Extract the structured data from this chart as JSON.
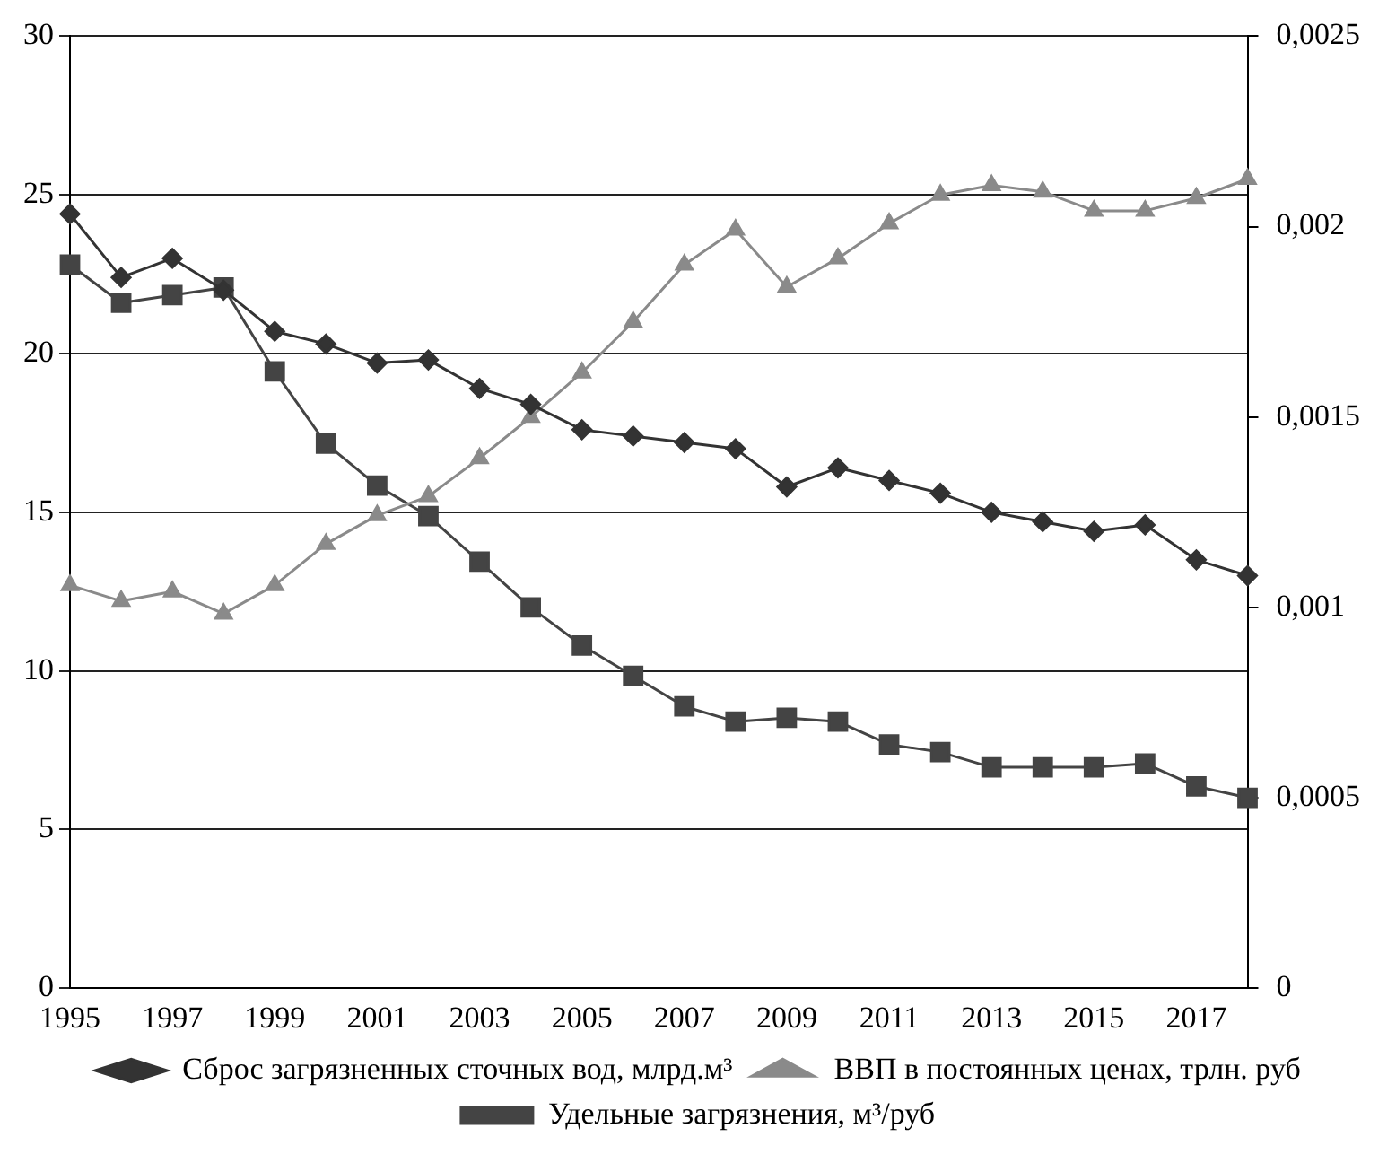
{
  "chart_data": {
    "type": "line",
    "categories": [
      "1995",
      null,
      "1997",
      null,
      "1999",
      null,
      "2001",
      null,
      "2003",
      null,
      "2005",
      null,
      "2007",
      null,
      "2009",
      null,
      "2011",
      null,
      "2013",
      null,
      "2015",
      null,
      "2017",
      null
    ],
    "series": [
      {
        "name": "Сброс загрязненных сточных вод, млрд.м³",
        "color": "#333333",
        "marker": "diamond",
        "values": [
          24.4,
          22.4,
          23.0,
          22.0,
          20.7,
          20.3,
          19.7,
          19.8,
          18.9,
          18.4,
          17.6,
          17.4,
          17.2,
          17.0,
          15.8,
          16.4,
          16.0,
          15.6,
          15.0,
          14.7,
          14.4,
          14.6,
          13.5,
          13.0
        ]
      },
      {
        "name": "ВВП в постоянных ценах, трлн. руб",
        "color": "#8a8a8a",
        "marker": "triangle",
        "values": [
          12.7,
          12.2,
          12.5,
          11.8,
          12.7,
          14.0,
          14.9,
          15.5,
          16.7,
          18.0,
          19.4,
          21.0,
          22.8,
          23.9,
          22.1,
          23.0,
          24.1,
          25.0,
          25.3,
          25.1,
          24.5,
          24.5,
          24.9,
          25.5
        ]
      },
      {
        "name": "Удельные загрязнения, м³/руб",
        "color": "#444444",
        "marker": "square",
        "axis": "y2",
        "values": [
          0.0019,
          0.0018,
          0.00182,
          0.00184,
          0.00162,
          0.00143,
          0.00132,
          0.00124,
          0.00112,
          0.001,
          0.0009,
          0.00082,
          0.00074,
          0.0007,
          0.00071,
          0.0007,
          0.00064,
          0.00062,
          0.00058,
          0.00058,
          0.00058,
          0.00059,
          0.00053,
          0.0005
        ]
      }
    ],
    "ylim": [
      0,
      30
    ],
    "yticks": [
      0,
      5,
      10,
      15,
      20,
      25,
      30
    ],
    "y2lim": [
      0,
      0.0025
    ],
    "y2ticks": [
      0,
      {
        "value": 0.0005,
        "label": "0,0005"
      },
      {
        "value": 0.001,
        "label": "0,001"
      },
      {
        "value": 0.0015,
        "label": "0,0015"
      },
      {
        "value": 0.002,
        "label": "0,002"
      },
      {
        "value": 0.0025,
        "label": "0,0025"
      }
    ],
    "grid": "y",
    "legend": "bottom",
    "line_style": "solid"
  }
}
